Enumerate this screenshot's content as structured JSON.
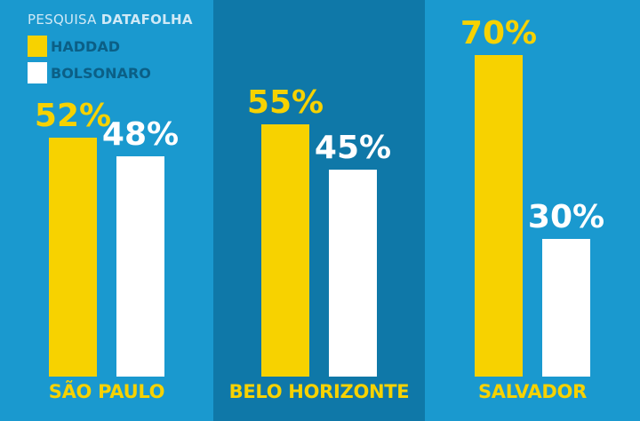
{
  "legend": {
    "title_prefix": "PESQUISA",
    "title_source": "DATAFOLHA",
    "items": [
      {
        "label": "HADDAD",
        "color": "#f7d200"
      },
      {
        "label": "BOLSONARO",
        "color": "#ffffff"
      }
    ]
  },
  "chart_data": {
    "type": "bar",
    "categories": [
      "SÃO PAULO",
      "BELO HORIZONTE",
      "SALVADOR"
    ],
    "series": [
      {
        "name": "HADDAD",
        "values": [
          52,
          55,
          70
        ],
        "labels": [
          "52%",
          "55%",
          "70%"
        ],
        "color": "#f7d200"
      },
      {
        "name": "BOLSONARO",
        "values": [
          48,
          45,
          30
        ],
        "labels": [
          "48%",
          "45%",
          "30%"
        ],
        "color": "#ffffff"
      }
    ],
    "unit": "%",
    "ylim": [
      0,
      70
    ],
    "grid": false,
    "legend_position": "top-left"
  }
}
